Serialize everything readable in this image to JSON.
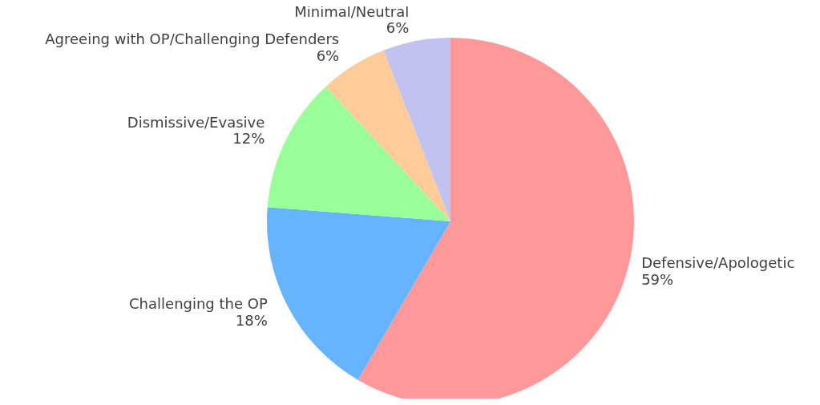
{
  "chart_data": {
    "type": "pie",
    "categories": [
      "Defensive/Apologetic",
      "Challenging the OP",
      "Dismissive/Evasive",
      "Agreeing with OP/Challenging Defenders",
      "Minimal/Neutral"
    ],
    "values": [
      59,
      18,
      12,
      6,
      6
    ],
    "value_labels": [
      "59%",
      "18%",
      "12%",
      "6%",
      "6%"
    ],
    "colors": [
      "#ff9999",
      "#66b3ff",
      "#99ff99",
      "#ffcc99",
      "#c2c2f0"
    ]
  }
}
